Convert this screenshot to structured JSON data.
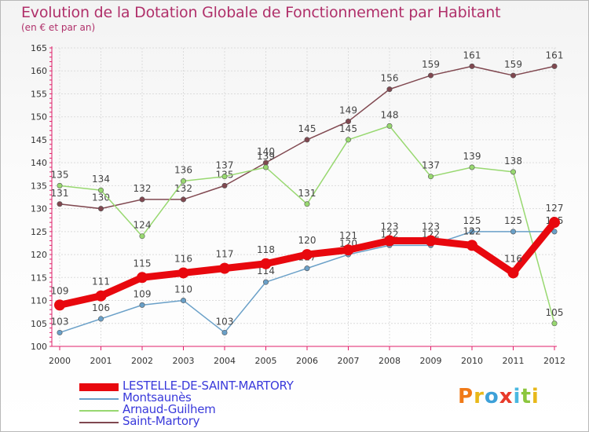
{
  "header": {
    "title": "Evolution de la Dotation Globale de Fonctionnement par Habitant",
    "subtitle": "(en € et par an)"
  },
  "colors": {
    "title": "#b0306a",
    "axis": "#e0206a",
    "legend_text": "#3a3adb"
  },
  "logo": {
    "letters": [
      "P",
      "r",
      "o",
      "x",
      "i",
      "t",
      "i"
    ],
    "colors": [
      "#f07a18",
      "#e8b81a",
      "#3da0d8",
      "#e83a2a",
      "#4ab8e0",
      "#8cc63e",
      "#e8b81a"
    ]
  },
  "chart_data": {
    "type": "line",
    "x": [
      "2000",
      "2001",
      "2002",
      "2003",
      "2004",
      "2005",
      "2006",
      "2007",
      "2008",
      "2009",
      "2010",
      "2011",
      "2012"
    ],
    "ylim": [
      100,
      165
    ],
    "yticks": [
      100,
      105,
      110,
      115,
      120,
      125,
      130,
      135,
      140,
      145,
      150,
      155,
      160,
      165
    ],
    "grid": true,
    "legend_position": "bottom-left",
    "series": [
      {
        "name": "LESTELLE-DE-SAINT-MARTORY",
        "color": "#e8080e",
        "values": [
          109,
          111,
          115,
          116,
          117,
          118,
          120,
          121,
          123,
          123,
          122,
          116,
          127
        ]
      },
      {
        "name": "Montsaunès",
        "color": "#6aa0c8",
        "values": [
          103,
          106,
          109,
          110,
          103,
          114,
          117,
          120,
          122,
          122,
          125,
          125,
          125
        ]
      },
      {
        "name": "Arnaud-Guilhem",
        "color": "#98d870",
        "values": [
          135,
          134,
          124,
          136,
          137,
          139,
          131,
          145,
          148,
          137,
          139,
          138,
          105
        ]
      },
      {
        "name": "Saint-Martory",
        "color": "#804850",
        "values": [
          131,
          130,
          132,
          132,
          135,
          140,
          145,
          149,
          156,
          159,
          161,
          159,
          161
        ]
      }
    ]
  }
}
